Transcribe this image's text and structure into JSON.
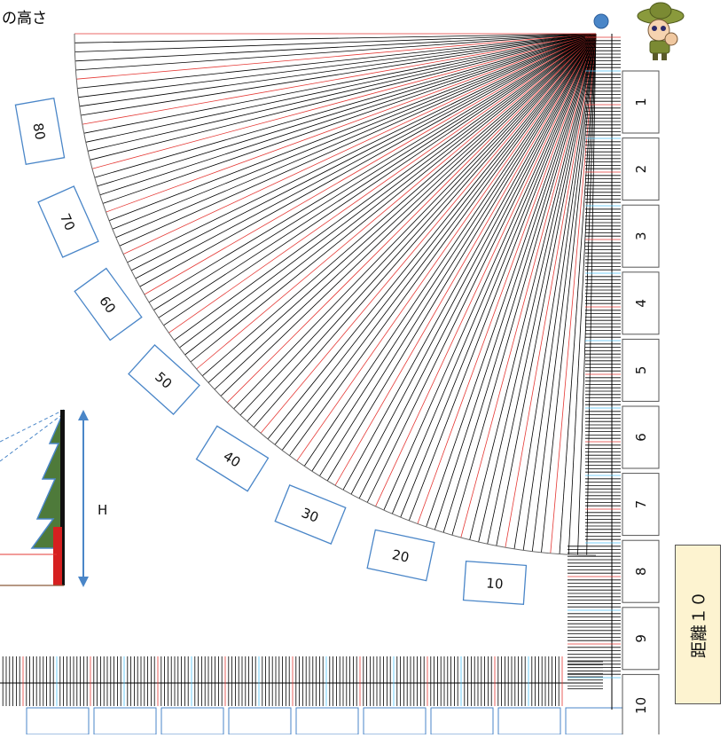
{
  "title_fragment": "の高さ",
  "height_label": "H",
  "distance_label": "距離１０",
  "angle_labels": [
    "80",
    "70",
    "60",
    "50",
    "40",
    "30",
    "20",
    "10"
  ],
  "scale_labels": [
    "1",
    "2",
    "3",
    "4",
    "5",
    "6",
    "7",
    "8",
    "9",
    "10"
  ],
  "icons": [
    "ranger-character-icon",
    "sight-dot-icon",
    "tree-icon",
    "height-arrow-icon"
  ],
  "colors": {
    "card_border": "#4a86c8",
    "major_line": "#e53935",
    "fine_line": "#000000",
    "cyan_tick": "#4fc3f7",
    "sight_dot": "#4a86c8",
    "tree": "#4e7a3a",
    "distance_card": "#fdf3d0"
  }
}
